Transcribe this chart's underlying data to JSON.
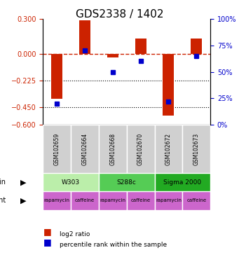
{
  "title": "GDS2338 / 1402",
  "samples": [
    "GSM102659",
    "GSM102664",
    "GSM102668",
    "GSM102670",
    "GSM102672",
    "GSM102673"
  ],
  "log2_ratio": [
    -0.38,
    0.285,
    -0.03,
    0.13,
    -0.52,
    0.13
  ],
  "percentile": [
    20,
    70,
    50,
    60,
    22,
    65
  ],
  "bar_color": "#cc2200",
  "dot_color": "#0000cc",
  "dashed_line_color": "#cc2200",
  "dotted_line_color": "#000000",
  "ylim_left": [
    -0.6,
    0.3
  ],
  "ylim_right": [
    0,
    100
  ],
  "yticks_left": [
    0.3,
    0,
    -0.225,
    -0.45,
    -0.6
  ],
  "yticks_right": [
    100,
    75,
    50,
    25,
    0
  ],
  "hlines_dotted": [
    -0.225,
    -0.45
  ],
  "strains": [
    {
      "label": "W303",
      "span": [
        0,
        2
      ],
      "color": "#aaddaa"
    },
    {
      "label": "S288c",
      "span": [
        2,
        4
      ],
      "color": "#66cc66"
    },
    {
      "label": "Sigma 2000",
      "span": [
        4,
        6
      ],
      "color": "#22aa22"
    }
  ],
  "agents": [
    {
      "label": "rapamycin",
      "span": [
        0,
        1
      ],
      "color": "#cc66cc"
    },
    {
      "label": "caffeine",
      "span": [
        1,
        2
      ],
      "color": "#cc66cc"
    },
    {
      "label": "rapamycin",
      "span": [
        2,
        3
      ],
      "color": "#cc66cc"
    },
    {
      "label": "caffeine",
      "span": [
        3,
        4
      ],
      "color": "#cc66cc"
    },
    {
      "label": "rapamycin",
      "span": [
        4,
        5
      ],
      "color": "#cc66cc"
    },
    {
      "label": "caffeine",
      "span": [
        5,
        6
      ],
      "color": "#cc66cc"
    }
  ],
  "legend_items": [
    {
      "label": "log2 ratio",
      "color": "#cc2200"
    },
    {
      "label": "percentile rank within the sample",
      "color": "#0000cc"
    }
  ]
}
